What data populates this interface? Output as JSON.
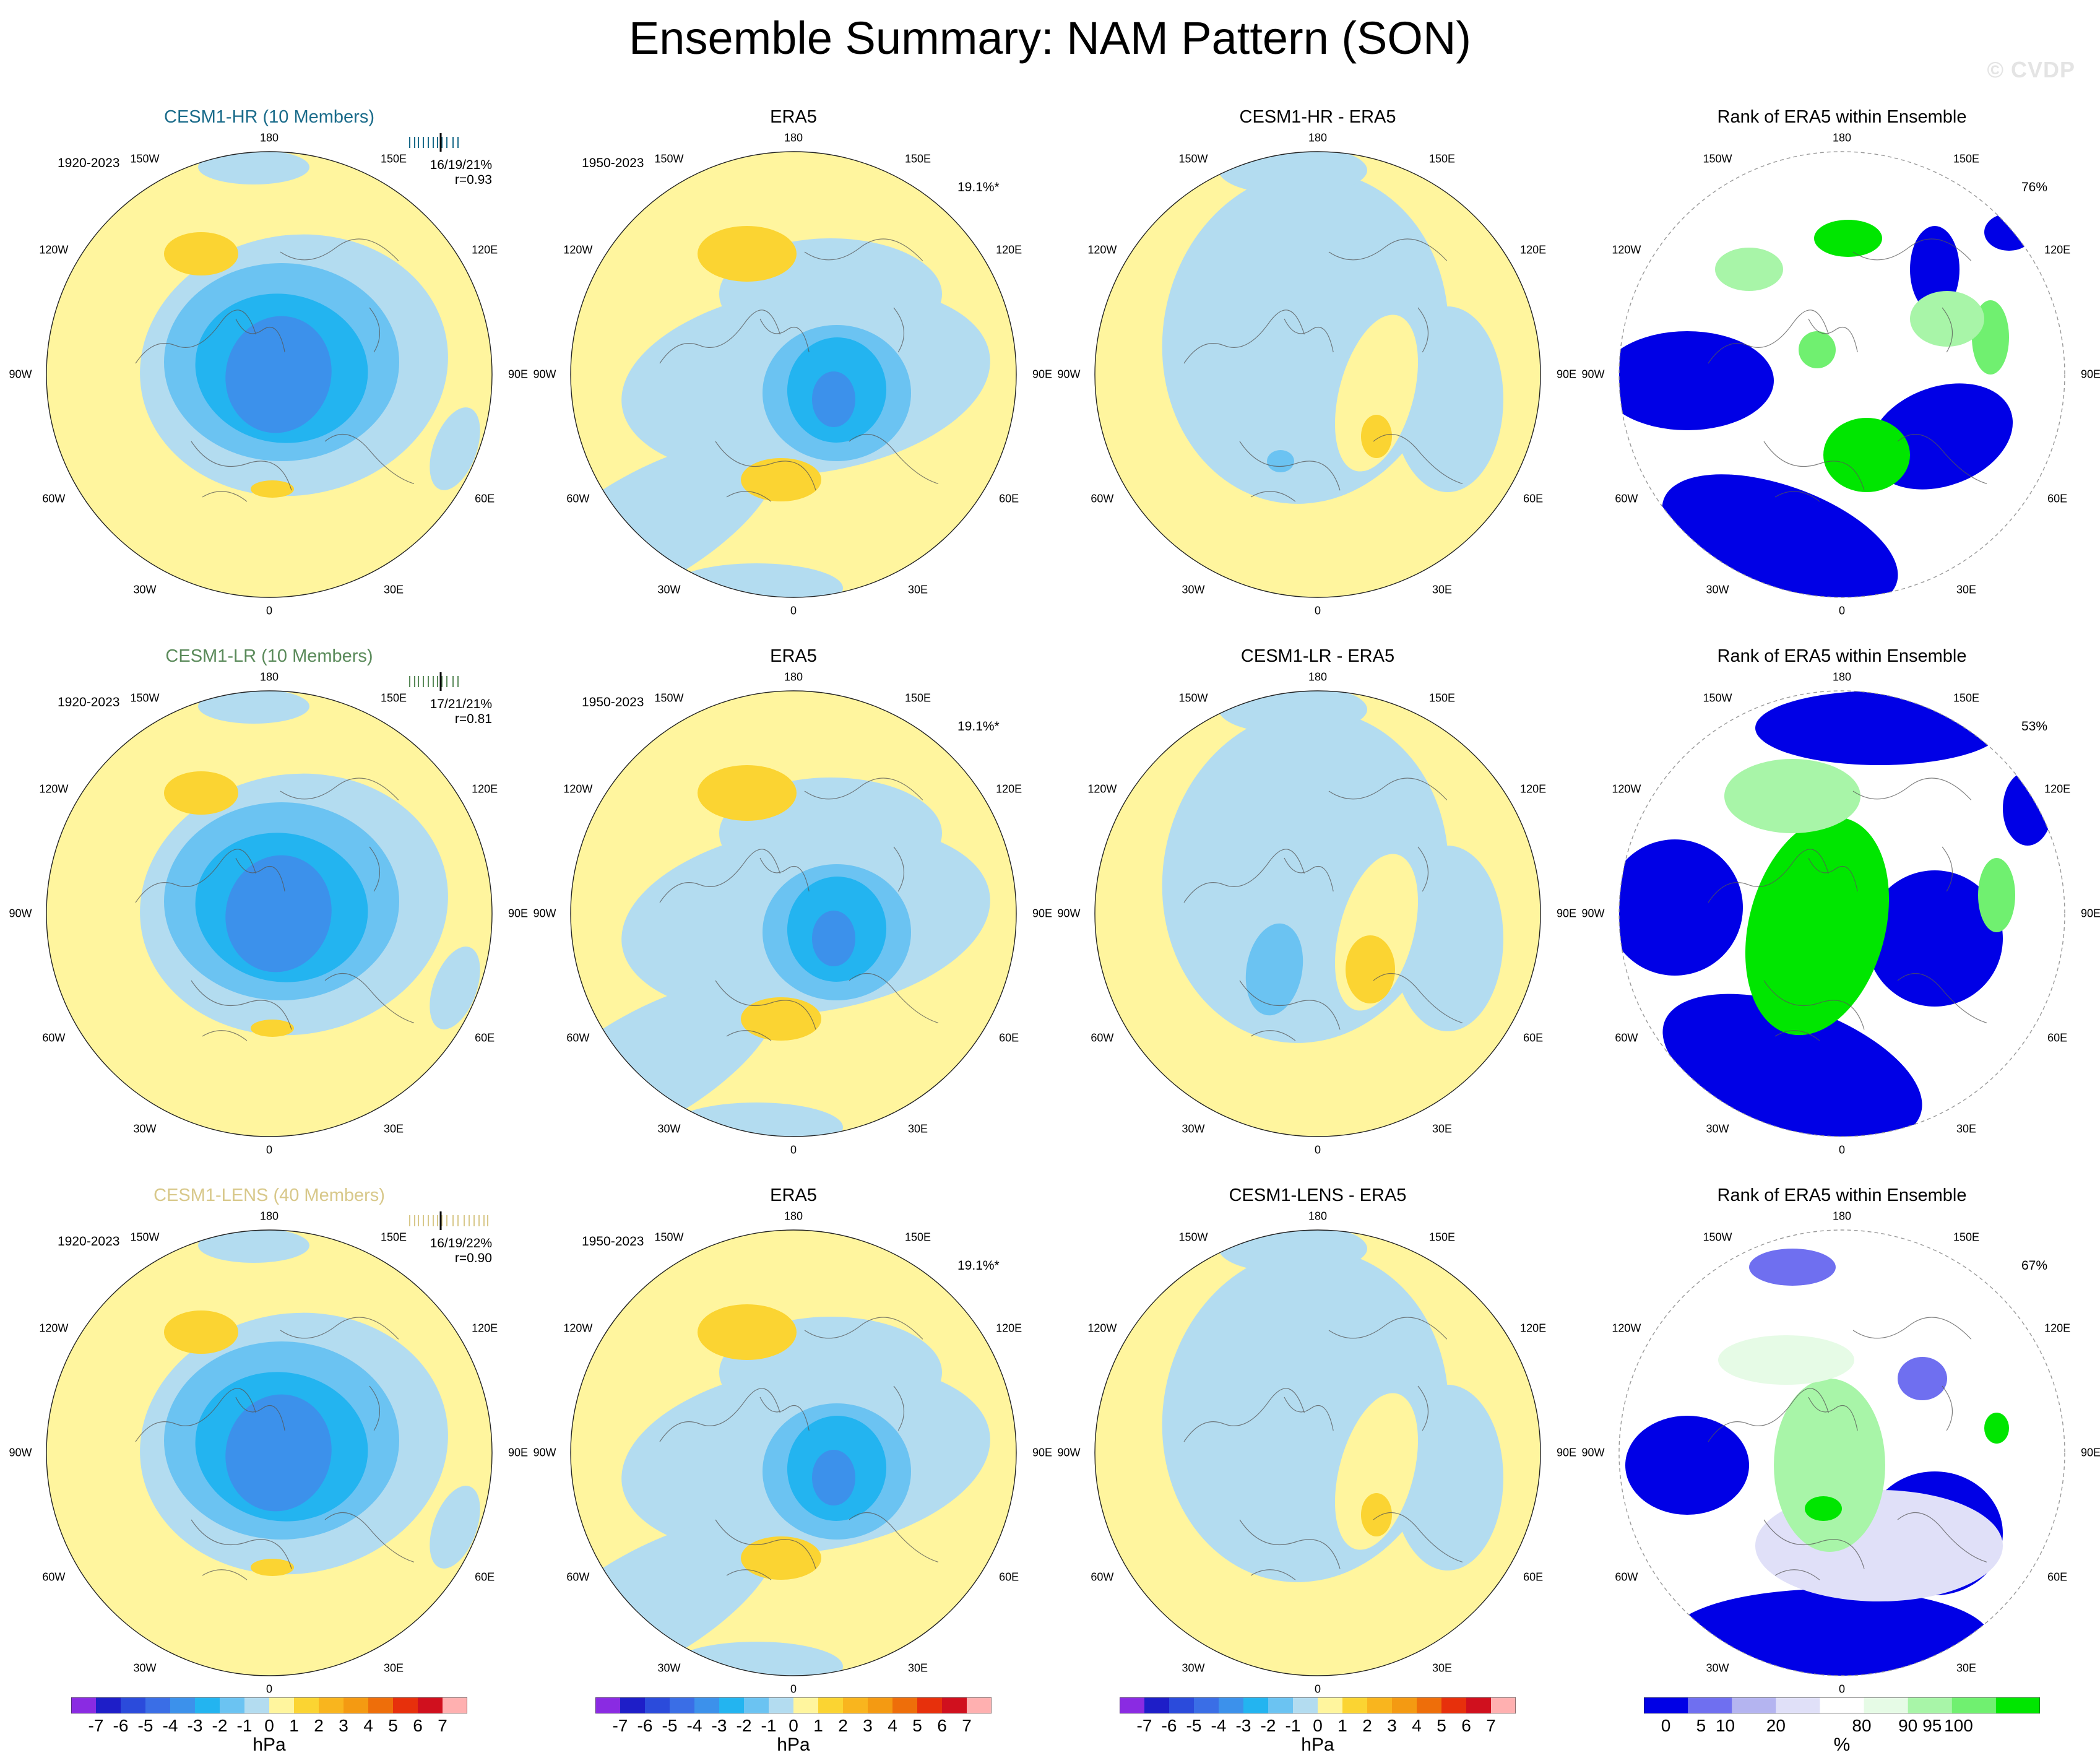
{
  "title": "Ensemble Summary: NAM Pattern (SON)",
  "watermark": "© CVDP",
  "colors": {
    "neg": [
      "#8a2be2",
      "#1e1ec8",
      "#2b4bdb",
      "#3a6ee6",
      "#3c91eb",
      "#23b4f0",
      "#6bc3f2",
      "#b3dcf0"
    ],
    "pos": [
      "#fff59e",
      "#fbd432",
      "#f9b51e",
      "#f49a12",
      "#ee6e0a",
      "#e7300c",
      "#d0101e",
      "#ffb0b0"
    ],
    "rank": [
      "#0000e6",
      "#6f6ff0",
      "#b4b4f0",
      "#e0e0f8",
      "#ffffff",
      "#e6fbe6",
      "#a8f5a8",
      "#70f070",
      "#00e600"
    ],
    "model_row1": "#1a6b8a",
    "model_row2": "#5a8a5a",
    "model_row3": "#d8c88a"
  },
  "lon_labels": {
    "top": "180",
    "bottom": "0",
    "l150": "150W",
    "r150": "150E",
    "l120": "120W",
    "r120": "120E",
    "l90": "90W",
    "r90": "90E",
    "l60": "60W",
    "r60": "60E",
    "l30": "30W",
    "r30": "30E"
  },
  "rows": [
    {
      "model": "CESM1-HR (10 Members)",
      "model_period": "1920-2023",
      "stats": "16/19/21%",
      "r": "r=0.93",
      "obs_title": "ERA5",
      "obs_period": "1950-2023",
      "obs_pct": "19.1%*",
      "diff_title": "CESM1-HR - ERA5",
      "rank_title": "Rank of ERA5 within Ensemble",
      "rank_pct": "76%"
    },
    {
      "model": "CESM1-LR (10 Members)",
      "model_period": "1920-2023",
      "stats": "17/21/21%",
      "r": "r=0.81",
      "obs_title": "ERA5",
      "obs_period": "1950-2023",
      "obs_pct": "19.1%*",
      "diff_title": "CESM1-LR - ERA5",
      "rank_title": "Rank of ERA5 within Ensemble",
      "rank_pct": "53%"
    },
    {
      "model": "CESM1-LENS (40 Members)",
      "model_period": "1920-2023",
      "stats": "16/19/22%",
      "r": "r=0.90",
      "obs_title": "ERA5",
      "obs_period": "1950-2023",
      "obs_pct": "19.1%*",
      "diff_title": "CESM1-LENS - ERA5",
      "rank_title": "Rank of ERA5 within Ensemble",
      "rank_pct": "67%"
    }
  ],
  "colorbar_hpa": {
    "labels": [
      "-7",
      "-6",
      "-5",
      "-4",
      "-3",
      "-2",
      "-1",
      "0",
      "1",
      "2",
      "3",
      "4",
      "5",
      "6",
      "7"
    ],
    "unit": "hPa"
  },
  "colorbar_rank": {
    "labels": [
      "0",
      "5",
      "10",
      "20",
      "80",
      "90",
      "95",
      "100"
    ],
    "unit": "%"
  }
}
